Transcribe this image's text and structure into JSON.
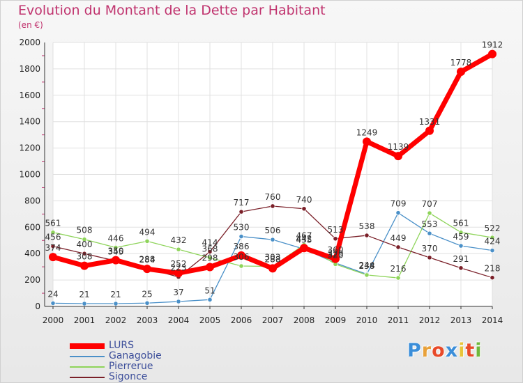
{
  "header": {
    "title": "Evolution du Montant de la Dette par Habitant",
    "subtitle": "(en €)"
  },
  "logo": {
    "text": "Proxiti",
    "colors": [
      "#3b8ed9",
      "#e8a13a",
      "#e84a2a",
      "#3b8ed9",
      "#e8c43a",
      "#e84a2a",
      "#6fb83b"
    ]
  },
  "chart_data": {
    "type": "line",
    "title": "Evolution du Montant de la Dette par Habitant",
    "subtitle": "(en €)",
    "xlabel": "",
    "ylabel": "",
    "ylim": [
      0,
      2000
    ],
    "yticks": [
      "0",
      "200",
      "400",
      "600",
      "800",
      "1000",
      "1200",
      "1400",
      "1600",
      "1800",
      "2000"
    ],
    "grid": true,
    "legend": "bottom-left",
    "categories": [
      "2000",
      "2001",
      "2002",
      "2003",
      "2004",
      "2005",
      "2006",
      "2007",
      "2008",
      "2009",
      "2010",
      "2011",
      "2012",
      "2013",
      "2014"
    ],
    "series": [
      {
        "name": "Ganagobie",
        "color": "#4a90c8",
        "values": [
          24,
          21,
          21,
          25,
          37,
          51,
          530,
          506,
          435,
          329,
          244,
          709,
          553,
          459,
          424
        ]
      },
      {
        "name": "Pierrerue",
        "color": "#8ed45a",
        "values": [
          561,
          508,
          446,
          494,
          432,
          368,
          306,
          303,
          467,
          320,
          238,
          216,
          707,
          561,
          522
        ]
      },
      {
        "name": "Sigonce",
        "color": "#7a1f28",
        "values": [
          456,
          400,
          345,
          288,
          223,
          414,
          717,
          760,
          740,
          513,
          538,
          449,
          370,
          291,
          218
        ]
      },
      {
        "name": "LURS",
        "color": "#ff0000",
        "values": [
          374,
          308,
          350,
          284,
          252,
          298,
          386,
          288,
          442,
          360,
          1249,
          1139,
          1331,
          1778,
          1912
        ]
      }
    ]
  }
}
